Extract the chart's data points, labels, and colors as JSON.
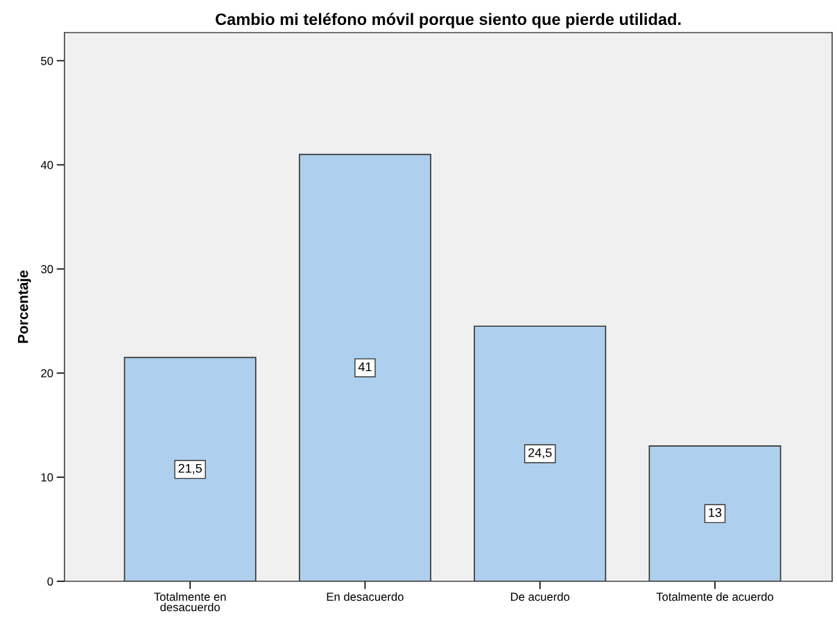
{
  "chart_data": {
    "type": "bar",
    "title": "Cambio mi teléfono móvil porque siento que pierde utilidad.",
    "ylabel": "Porcentaje",
    "categories": [
      "Totalmente en\ndesacuerdo",
      "En desacuerdo",
      "De acuerdo",
      "Totalmente de acuerdo"
    ],
    "values": [
      21.5,
      41,
      24.5,
      13
    ],
    "value_labels": [
      "21,5",
      "41",
      "24,5",
      "13"
    ],
    "color": "#aed0ee",
    "ylim": [
      0,
      52.7
    ],
    "yticks": [
      0,
      10,
      20,
      30,
      40,
      50
    ],
    "grid": false,
    "legend": false
  }
}
